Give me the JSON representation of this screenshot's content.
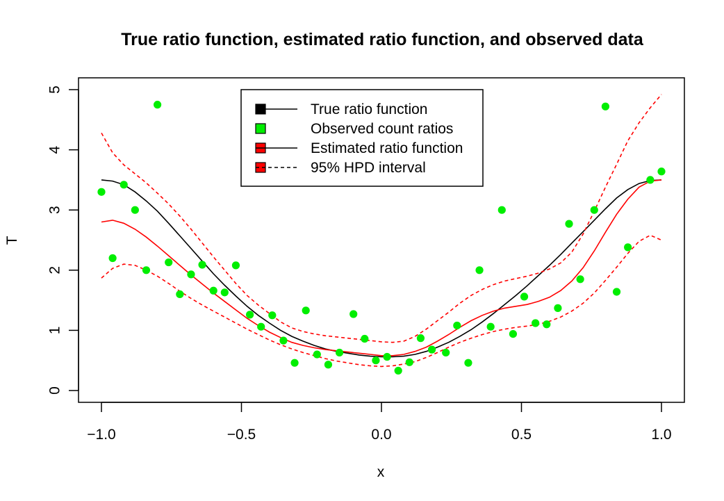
{
  "chart_data": {
    "type": "scatter",
    "title": "True ratio function, estimated ratio function, and observed data",
    "xlabel": "x",
    "ylabel": "T",
    "xlim": [
      -1.0,
      1.0
    ],
    "ylim": [
      0,
      5
    ],
    "xticks": [
      -1.0,
      -0.5,
      0.0,
      0.5,
      1.0
    ],
    "xtick_labels": [
      "−1.0",
      "−0.5",
      "0.0",
      "0.5",
      "1.0"
    ],
    "yticks": [
      0,
      1,
      2,
      3,
      4,
      5
    ],
    "ytick_labels": [
      "0",
      "1",
      "2",
      "3",
      "4",
      "5"
    ],
    "grid": false,
    "legend_position": "top-center",
    "legend": [
      {
        "label": "True ratio function",
        "color": "#000000",
        "style": "solid"
      },
      {
        "label": "Observed count ratios",
        "color": "#00ee00",
        "style": "points"
      },
      {
        "label": "Estimated ratio function",
        "color": "#ff0000",
        "style": "solid"
      },
      {
        "label": "95% HPD interval",
        "color": "#ff0000",
        "style": "dashed"
      }
    ],
    "colors": {
      "true": "#000000",
      "observed": "#00ee00",
      "estimated": "#ff0000",
      "hpd": "#ff0000"
    },
    "series": [
      {
        "name": "True ratio function",
        "x": [
          -1.0,
          -0.96,
          -0.92,
          -0.88,
          -0.84,
          -0.8,
          -0.76,
          -0.72,
          -0.68,
          -0.64,
          -0.6,
          -0.56,
          -0.52,
          -0.48,
          -0.44,
          -0.4,
          -0.36,
          -0.32,
          -0.28,
          -0.24,
          -0.2,
          -0.16,
          -0.12,
          -0.08,
          -0.04,
          0.0,
          0.04,
          0.08,
          0.12,
          0.16,
          0.2,
          0.24,
          0.28,
          0.32,
          0.36,
          0.4,
          0.44,
          0.48,
          0.52,
          0.56,
          0.6,
          0.64,
          0.68,
          0.72,
          0.76,
          0.8,
          0.84,
          0.88,
          0.92,
          0.96,
          1.0
        ],
        "y": [
          3.5,
          3.48,
          3.42,
          3.3,
          3.15,
          2.98,
          2.78,
          2.57,
          2.36,
          2.15,
          1.94,
          1.75,
          1.57,
          1.4,
          1.25,
          1.12,
          1.0,
          0.9,
          0.82,
          0.75,
          0.69,
          0.65,
          0.62,
          0.59,
          0.57,
          0.56,
          0.56,
          0.57,
          0.6,
          0.65,
          0.72,
          0.8,
          0.9,
          1.01,
          1.14,
          1.28,
          1.43,
          1.58,
          1.74,
          1.91,
          2.08,
          2.26,
          2.45,
          2.64,
          2.83,
          3.02,
          3.2,
          3.34,
          3.44,
          3.49,
          3.5
        ]
      },
      {
        "name": "Estimated ratio function",
        "x": [
          -1.0,
          -0.96,
          -0.92,
          -0.88,
          -0.84,
          -0.8,
          -0.76,
          -0.72,
          -0.68,
          -0.64,
          -0.6,
          -0.56,
          -0.52,
          -0.48,
          -0.44,
          -0.4,
          -0.36,
          -0.32,
          -0.28,
          -0.24,
          -0.2,
          -0.16,
          -0.12,
          -0.08,
          -0.04,
          0.0,
          0.04,
          0.08,
          0.12,
          0.16,
          0.2,
          0.24,
          0.28,
          0.32,
          0.36,
          0.4,
          0.44,
          0.48,
          0.52,
          0.56,
          0.6,
          0.64,
          0.68,
          0.72,
          0.76,
          0.8,
          0.84,
          0.88,
          0.92,
          0.96,
          1.0
        ],
        "y": [
          2.8,
          2.83,
          2.78,
          2.68,
          2.55,
          2.4,
          2.24,
          2.08,
          1.92,
          1.77,
          1.62,
          1.48,
          1.34,
          1.2,
          1.08,
          0.97,
          0.88,
          0.8,
          0.75,
          0.71,
          0.68,
          0.66,
          0.64,
          0.62,
          0.6,
          0.58,
          0.58,
          0.6,
          0.65,
          0.72,
          0.82,
          0.93,
          1.05,
          1.16,
          1.25,
          1.32,
          1.37,
          1.4,
          1.43,
          1.48,
          1.55,
          1.66,
          1.82,
          2.04,
          2.32,
          2.63,
          2.93,
          3.18,
          3.38,
          3.48,
          3.5
        ]
      },
      {
        "name": "95% HPD interval (upper)",
        "x": [
          -1.0,
          -0.96,
          -0.92,
          -0.88,
          -0.84,
          -0.8,
          -0.76,
          -0.72,
          -0.68,
          -0.64,
          -0.6,
          -0.56,
          -0.52,
          -0.48,
          -0.44,
          -0.4,
          -0.36,
          -0.32,
          -0.28,
          -0.24,
          -0.2,
          -0.16,
          -0.12,
          -0.08,
          -0.04,
          0.0,
          0.04,
          0.08,
          0.12,
          0.16,
          0.2,
          0.24,
          0.28,
          0.32,
          0.36,
          0.4,
          0.44,
          0.48,
          0.52,
          0.56,
          0.6,
          0.64,
          0.68,
          0.72,
          0.76,
          0.8,
          0.84,
          0.88,
          0.92,
          0.96,
          1.0
        ],
        "y": [
          4.28,
          3.95,
          3.75,
          3.6,
          3.45,
          3.28,
          3.1,
          2.9,
          2.68,
          2.45,
          2.22,
          2.0,
          1.78,
          1.58,
          1.42,
          1.28,
          1.14,
          1.04,
          0.98,
          0.94,
          0.91,
          0.89,
          0.87,
          0.85,
          0.83,
          0.81,
          0.8,
          0.82,
          0.9,
          1.02,
          1.16,
          1.3,
          1.45,
          1.58,
          1.68,
          1.76,
          1.82,
          1.86,
          1.9,
          1.95,
          2.02,
          2.12,
          2.3,
          2.6,
          2.98,
          3.38,
          3.76,
          4.15,
          4.45,
          4.7,
          4.92
        ]
      },
      {
        "name": "95% HPD interval (lower)",
        "x": [
          -1.0,
          -0.96,
          -0.92,
          -0.88,
          -0.84,
          -0.8,
          -0.76,
          -0.72,
          -0.68,
          -0.64,
          -0.6,
          -0.56,
          -0.52,
          -0.48,
          -0.44,
          -0.4,
          -0.36,
          -0.32,
          -0.28,
          -0.24,
          -0.2,
          -0.16,
          -0.12,
          -0.08,
          -0.04,
          0.0,
          0.04,
          0.08,
          0.12,
          0.16,
          0.2,
          0.24,
          0.28,
          0.32,
          0.36,
          0.4,
          0.44,
          0.48,
          0.52,
          0.56,
          0.6,
          0.64,
          0.68,
          0.72,
          0.76,
          0.8,
          0.84,
          0.88,
          0.92,
          0.96,
          1.0
        ],
        "y": [
          1.87,
          2.03,
          2.1,
          2.08,
          2.0,
          1.9,
          1.78,
          1.65,
          1.53,
          1.42,
          1.32,
          1.22,
          1.12,
          1.02,
          0.93,
          0.84,
          0.76,
          0.69,
          0.63,
          0.58,
          0.53,
          0.49,
          0.46,
          0.43,
          0.41,
          0.4,
          0.41,
          0.44,
          0.48,
          0.55,
          0.63,
          0.72,
          0.8,
          0.87,
          0.93,
          0.98,
          1.02,
          1.05,
          1.07,
          1.1,
          1.15,
          1.22,
          1.32,
          1.45,
          1.62,
          1.83,
          2.05,
          2.28,
          2.48,
          2.58,
          2.5
        ]
      }
    ],
    "points": {
      "name": "Observed count ratios",
      "x": [
        -1.0,
        -0.96,
        -0.92,
        -0.88,
        -0.84,
        -0.8,
        -0.76,
        -0.72,
        -0.68,
        -0.64,
        -0.6,
        -0.56,
        -0.52,
        -0.47,
        -0.43,
        -0.39,
        -0.35,
        -0.31,
        -0.27,
        -0.23,
        -0.19,
        -0.15,
        -0.1,
        -0.06,
        -0.02,
        0.02,
        0.06,
        0.1,
        0.14,
        0.18,
        0.23,
        0.27,
        0.31,
        0.35,
        0.39,
        0.43,
        0.47,
        0.51,
        0.55,
        0.59,
        0.63,
        0.67,
        0.71,
        0.76,
        0.8,
        0.84,
        0.88,
        0.96,
        1.0
      ],
      "y": [
        3.3,
        2.2,
        3.42,
        3.0,
        2.0,
        4.75,
        2.13,
        1.6,
        1.93,
        2.09,
        1.66,
        1.63,
        2.08,
        1.26,
        1.06,
        1.25,
        0.83,
        0.46,
        1.33,
        0.6,
        0.43,
        0.63,
        1.27,
        0.86,
        0.5,
        0.56,
        0.33,
        0.47,
        0.87,
        0.68,
        0.63,
        1.08,
        0.46,
        2.0,
        1.06,
        3.0,
        0.94,
        1.56,
        1.12,
        1.1,
        1.37,
        2.77,
        1.85,
        3.0,
        4.72,
        1.64,
        2.38,
        3.5,
        3.64
      ]
    }
  }
}
